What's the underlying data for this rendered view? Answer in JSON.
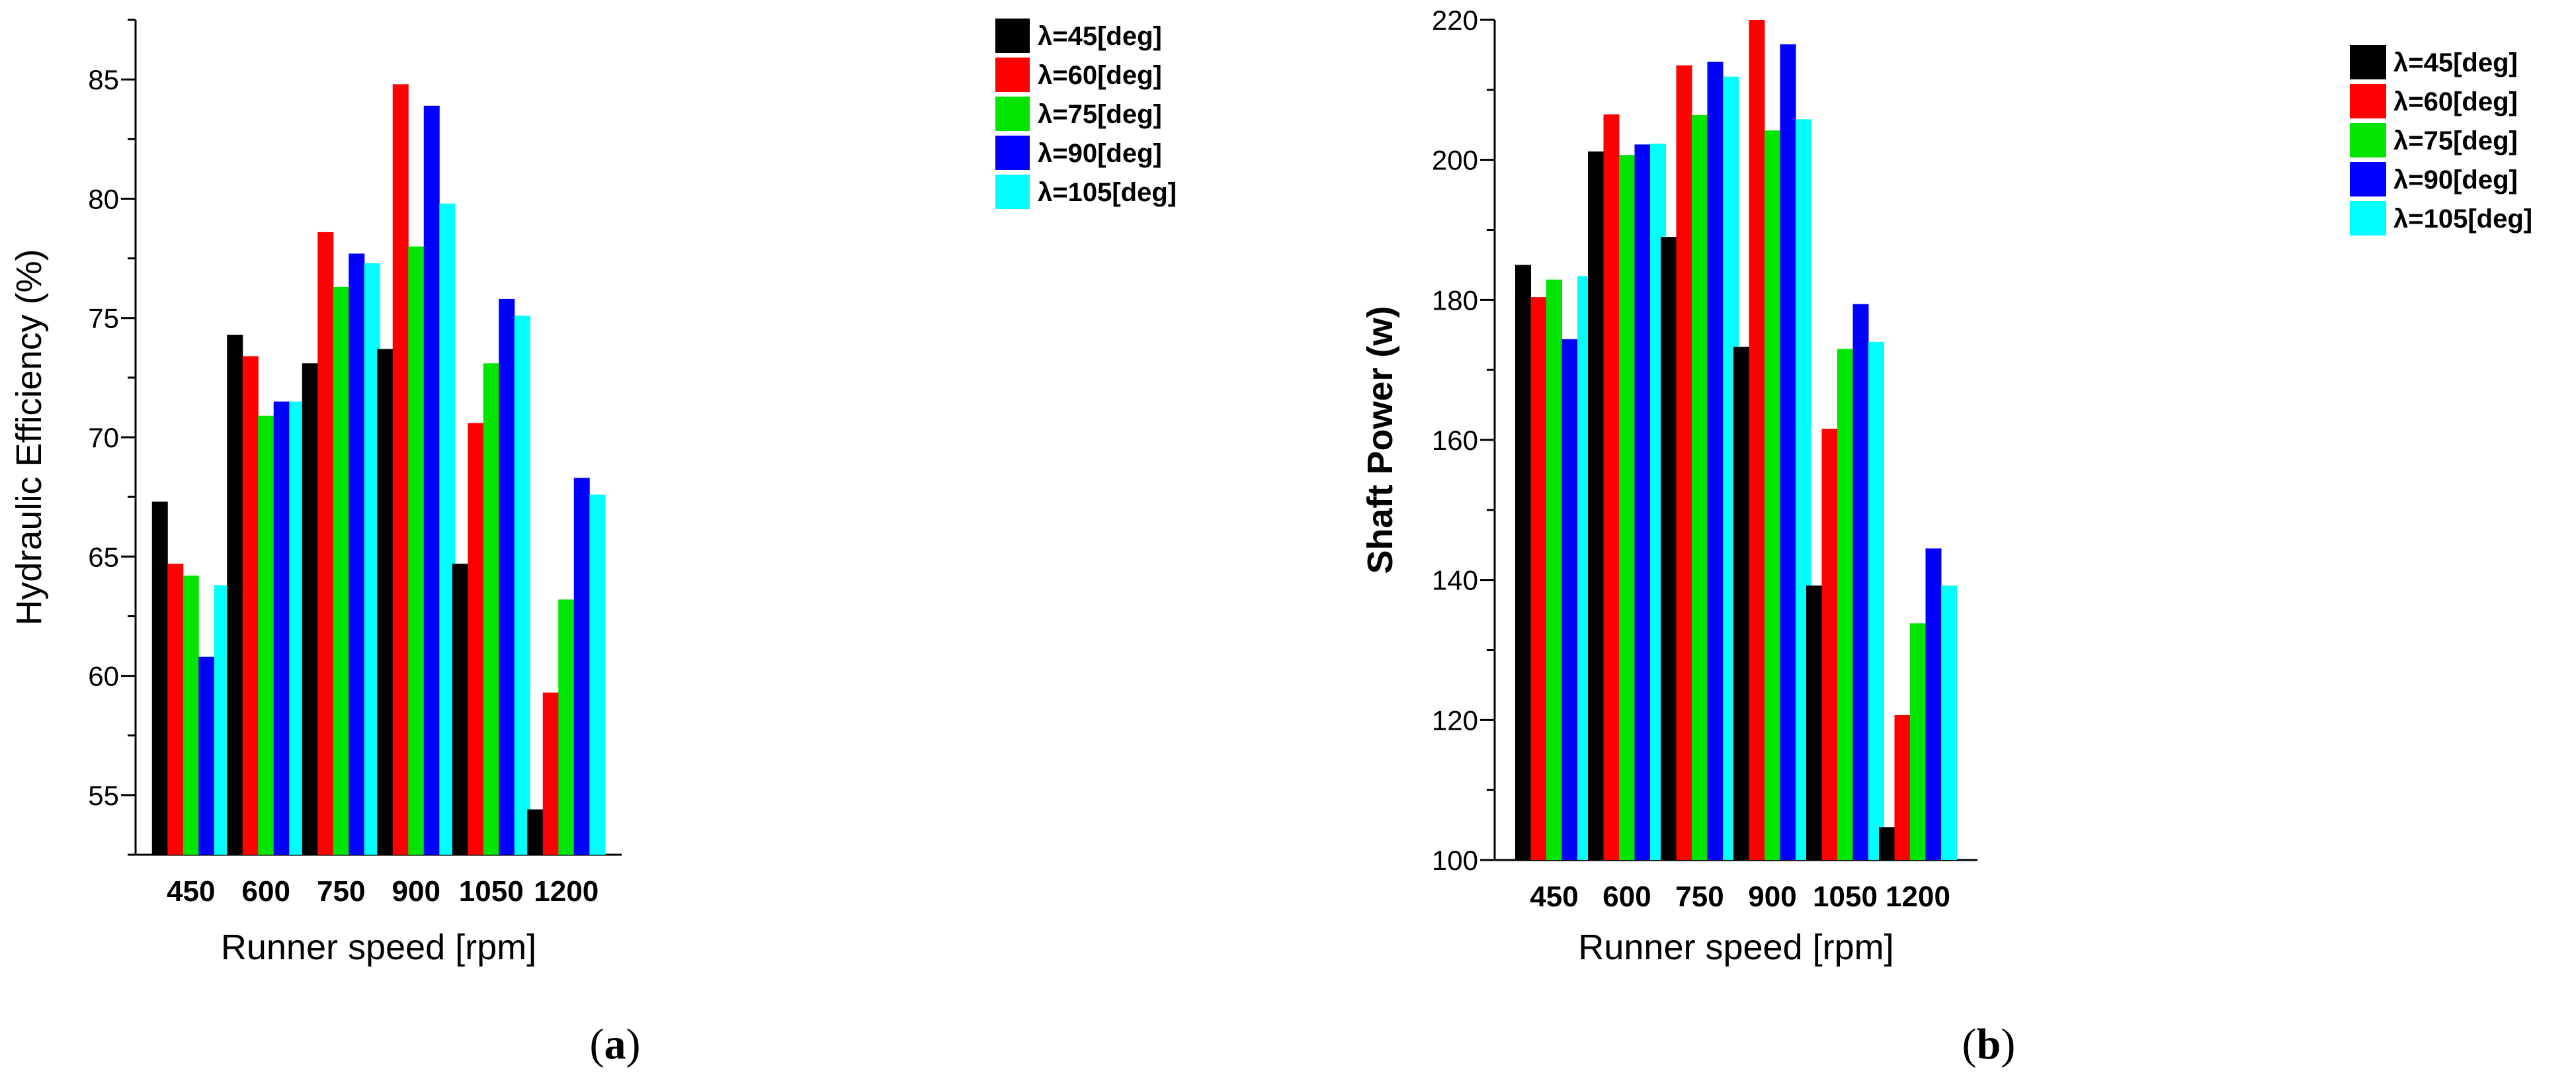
{
  "chart_data": [
    {
      "type": "bar",
      "title": "",
      "xlabel": "Runner speed [rpm]",
      "ylabel": "Hydraulic Efficiency (%)",
      "ylim": [
        52.5,
        87.5
      ],
      "yticks": [
        55,
        60,
        65,
        70,
        75,
        80,
        85
      ],
      "minor_ticks": true,
      "grid": false,
      "legend_position": "top-right",
      "caption_open": "(",
      "caption_letter": "a",
      "caption_close": ")",
      "categories": [
        "450",
        "600",
        "750",
        "900",
        "1050",
        "1200"
      ],
      "series": [
        {
          "name": "λ=45[deg]",
          "color": "#000000",
          "values": [
            67.3,
            74.3,
            73.1,
            73.7,
            64.7,
            54.4
          ]
        },
        {
          "name": "λ=60[deg]",
          "color": "#ff0000",
          "values": [
            64.7,
            73.4,
            78.6,
            84.8,
            70.6,
            59.3
          ]
        },
        {
          "name": "λ=75[deg]",
          "color": "#00e600",
          "values": [
            64.2,
            70.9,
            76.3,
            78.0,
            73.1,
            63.2
          ]
        },
        {
          "name": "λ=90[deg]",
          "color": "#0000ff",
          "values": [
            60.8,
            71.5,
            77.7,
            83.9,
            75.8,
            68.3
          ]
        },
        {
          "name": "λ=105[deg]",
          "color": "#00ffff",
          "values": [
            63.8,
            71.5,
            77.3,
            79.8,
            75.1,
            67.6
          ]
        }
      ]
    },
    {
      "type": "bar",
      "title": "",
      "xlabel": "Runner speed [rpm]",
      "ylabel": "Shaft Power (w)",
      "ylim": [
        100,
        220
      ],
      "yticks": [
        100,
        120,
        140,
        160,
        180,
        200,
        220
      ],
      "minor_ticks": true,
      "grid": false,
      "legend_position": "top-right",
      "caption_open": "(",
      "caption_letter": "b",
      "caption_close": ")",
      "categories": [
        "450",
        "600",
        "750",
        "900",
        "1050",
        "1200"
      ],
      "series": [
        {
          "name": "λ=45[deg]",
          "color": "#000000",
          "values": [
            185.0,
            201.2,
            189.0,
            173.3,
            139.2,
            104.7
          ]
        },
        {
          "name": "λ=60[deg]",
          "color": "#ff0000",
          "values": [
            180.4,
            206.5,
            213.5,
            220.0,
            161.6,
            120.7
          ]
        },
        {
          "name": "λ=75[deg]",
          "color": "#00e600",
          "values": [
            182.9,
            200.7,
            206.4,
            204.2,
            173.0,
            133.8
          ]
        },
        {
          "name": "λ=90[deg]",
          "color": "#0000ff",
          "values": [
            174.4,
            202.2,
            214.0,
            216.5,
            179.4,
            144.5
          ]
        },
        {
          "name": "λ=105[deg]",
          "color": "#00ffff",
          "values": [
            183.4,
            202.3,
            211.9,
            205.8,
            174.0,
            139.2
          ]
        }
      ]
    }
  ]
}
